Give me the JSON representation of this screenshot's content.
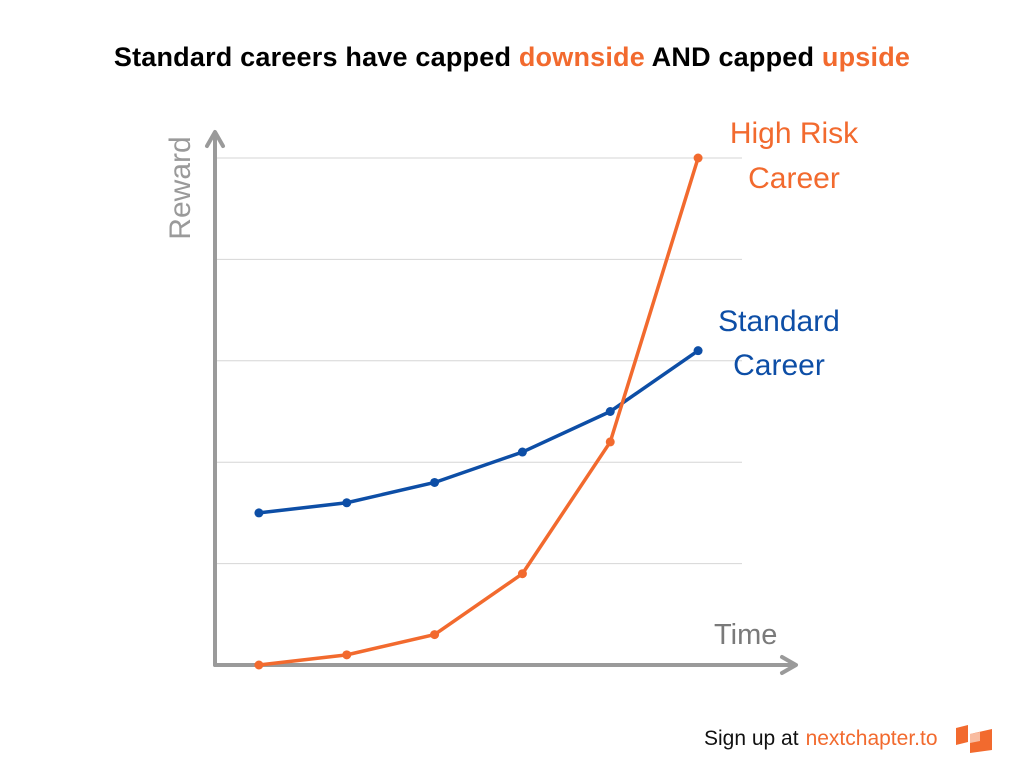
{
  "title": {
    "part1": "Standard careers have capped ",
    "highlight1": "downside",
    "part2": " AND capped ",
    "highlight2": "upside"
  },
  "footer": {
    "prefix": "Sign up at",
    "link": "nextchapter.to",
    "logo_icon": "nextchapter-logo-icon"
  },
  "colors": {
    "accent": "#f26a2e",
    "standard": "#0d4ea6",
    "axis": "#9a9a9a",
    "grid": "#d6d6d6"
  },
  "chart_data": {
    "type": "line",
    "xlabel": "Time",
    "ylabel": "Reward",
    "x": [
      1,
      2,
      3,
      4,
      5,
      6
    ],
    "xlim": [
      0.5,
      6.5
    ],
    "ylim": [
      0,
      5
    ],
    "yticks": [
      0,
      1,
      2,
      3,
      4,
      5
    ],
    "grid": true,
    "legend": "inline labels at line ends",
    "series": [
      {
        "name_line1": "Standard",
        "name_line2": "Career",
        "values": [
          1.5,
          1.6,
          1.8,
          2.1,
          2.5,
          3.1
        ],
        "color": "#0d4ea6"
      },
      {
        "name_line1": "High Risk",
        "name_line2": "Career",
        "values": [
          0.0,
          0.1,
          0.3,
          0.9,
          2.2,
          5.0
        ],
        "color": "#f26a2e"
      }
    ]
  }
}
